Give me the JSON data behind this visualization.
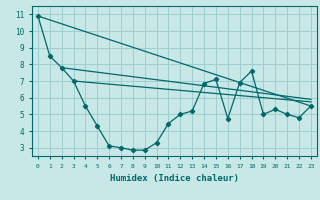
{
  "xlabel": "Humidex (Indice chaleur)",
  "bg_color": "#c8e8e8",
  "grid_color": "#9ecece",
  "line_color": "#006868",
  "zigzag_x": [
    0,
    1,
    2,
    3,
    4,
    5,
    6,
    7,
    8,
    9,
    10,
    11,
    12,
    13,
    14,
    15,
    16,
    17,
    18,
    19,
    20,
    21,
    22,
    23
  ],
  "zigzag_y": [
    10.9,
    8.5,
    7.8,
    7.0,
    5.5,
    4.3,
    3.1,
    3.0,
    2.85,
    2.85,
    3.3,
    4.45,
    5.0,
    5.2,
    6.85,
    7.1,
    4.75,
    6.9,
    7.6,
    5.0,
    5.3,
    5.0,
    4.8,
    5.5
  ],
  "trend1_x": [
    0,
    23
  ],
  "trend1_y": [
    10.9,
    5.5
  ],
  "trend2_x": [
    2,
    23
  ],
  "trend2_y": [
    7.8,
    5.9
  ],
  "trend3_x": [
    3,
    23
  ],
  "trend3_y": [
    7.0,
    5.75
  ],
  "xlim": [
    -0.5,
    23.5
  ],
  "ylim": [
    2.5,
    11.5
  ],
  "yticks": [
    3,
    4,
    5,
    6,
    7,
    8,
    9,
    10,
    11
  ],
  "xticks": [
    0,
    1,
    2,
    3,
    4,
    5,
    6,
    7,
    8,
    9,
    10,
    11,
    12,
    13,
    14,
    15,
    16,
    17,
    18,
    19,
    20,
    21,
    22,
    23
  ]
}
